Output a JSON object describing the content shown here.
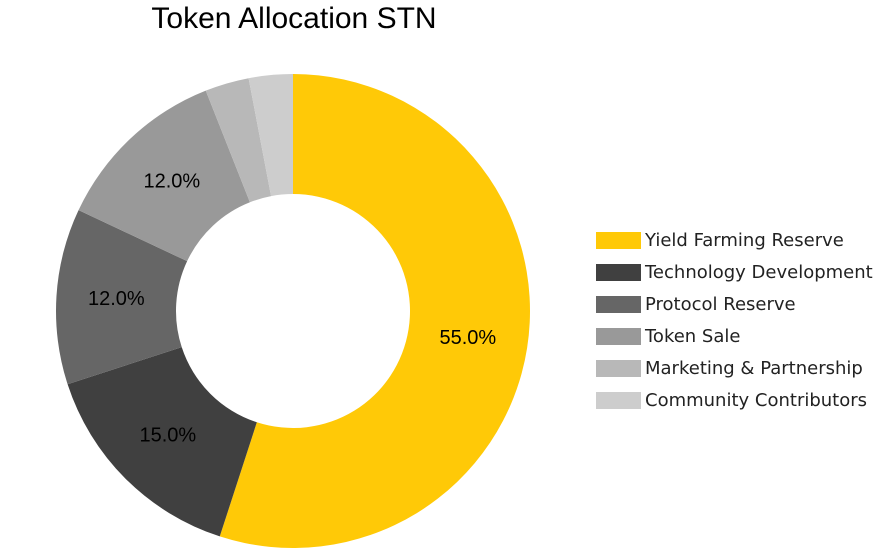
{
  "chart_data": {
    "type": "pie",
    "title": "Token Allocation STN",
    "donut": true,
    "slices": [
      {
        "label": "Yield Farming Reserve",
        "value": 55.0,
        "display": "55.0%",
        "color": "#FFC907"
      },
      {
        "label": "Technology Development",
        "value": 15.0,
        "display": "15.0%",
        "color": "#404040"
      },
      {
        "label": "Protocol Reserve",
        "value": 12.0,
        "display": "12.0%",
        "color": "#666666"
      },
      {
        "label": "Token Sale",
        "value": 12.0,
        "display": "12.0%",
        "color": "#999999"
      },
      {
        "label": "Marketing & Partnership",
        "value": 3.0,
        "display": "",
        "color": "#B8B8B8"
      },
      {
        "label": "Community Contributors",
        "value": 3.0,
        "display": "",
        "color": "#CDCDCD"
      }
    ],
    "legend_position": "right"
  }
}
